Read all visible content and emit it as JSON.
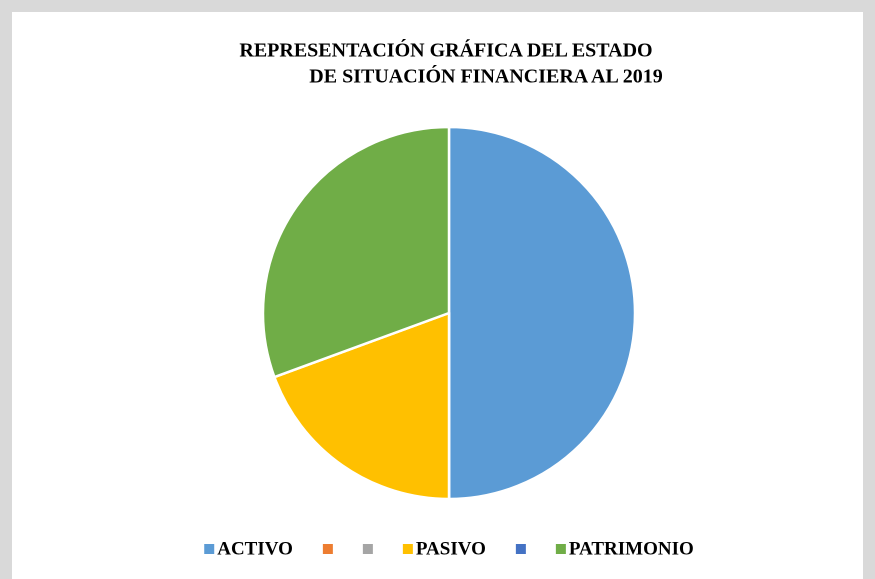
{
  "chart_data": {
    "type": "pie",
    "title": [
      "REPRESENTACIÓN GRÁFICA DEL ESTADO",
      "DE SITUACIÓN FINANCIERA AL 2019"
    ],
    "categories": [
      "ACTIVO",
      null,
      null,
      "PASIVO",
      null,
      "PATRIMONIO"
    ],
    "values": [
      50,
      0,
      0,
      19.4,
      0,
      30.6
    ],
    "colors": [
      "#5b9bd5",
      "#ed7d31",
      "#a5a5a5",
      "#ffc000",
      "#4472c4",
      "#70ad47"
    ],
    "legend": "bottom"
  }
}
